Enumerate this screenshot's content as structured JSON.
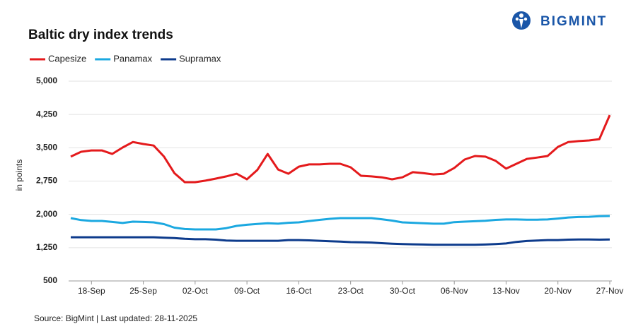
{
  "logo": "BIGMINT",
  "source": "Source: BigMint | Last updated: 28-11-2025",
  "chart_data": {
    "type": "line",
    "title": "Baltic dry index trends",
    "ylabel": "in points",
    "categories": [
      null,
      null,
      "18-Sep",
      null,
      null,
      null,
      null,
      "25-Sep",
      null,
      null,
      null,
      null,
      "02-Oct",
      null,
      null,
      null,
      null,
      "09-Oct",
      null,
      null,
      null,
      null,
      "16-Oct",
      null,
      null,
      null,
      null,
      "23-Oct",
      null,
      null,
      null,
      null,
      "30-Oct",
      null,
      null,
      null,
      null,
      "06-Nov",
      null,
      null,
      null,
      null,
      "13-Nov",
      null,
      null,
      null,
      null,
      "20-Nov",
      null,
      null,
      null,
      null,
      "27-Nov"
    ],
    "series": [
      {
        "name": "Capesize",
        "color": "#e41a1c",
        "values": [
          3300,
          3410,
          3440,
          3440,
          3360,
          3505,
          3630,
          3585,
          3550,
          3300,
          2930,
          2725,
          2725,
          2760,
          2805,
          2855,
          2915,
          2790,
          3000,
          3360,
          3010,
          2915,
          3075,
          3125,
          3125,
          3140,
          3140,
          3060,
          2870,
          2855,
          2835,
          2790,
          2835,
          2950,
          2930,
          2900,
          2915,
          3045,
          3235,
          3315,
          3300,
          3205,
          3030,
          3140,
          3250,
          3280,
          3315,
          3520,
          3630,
          3650,
          3665,
          3695,
          4235
        ]
      },
      {
        "name": "Panamax",
        "color": "#1ba8e0",
        "values": [
          1915,
          1870,
          1851,
          1851,
          1830,
          1805,
          1835,
          1830,
          1820,
          1780,
          1700,
          1670,
          1660,
          1660,
          1660,
          1690,
          1740,
          1765,
          1785,
          1800,
          1790,
          1810,
          1820,
          1850,
          1875,
          1900,
          1915,
          1915,
          1915,
          1915,
          1890,
          1860,
          1820,
          1810,
          1800,
          1790,
          1790,
          1825,
          1835,
          1845,
          1855,
          1875,
          1885,
          1885,
          1880,
          1880,
          1885,
          1905,
          1930,
          1940,
          1945,
          1960,
          1963
        ]
      },
      {
        "name": "Supramax",
        "color": "#0d3b8c",
        "values": [
          1485,
          1485,
          1485,
          1485,
          1485,
          1485,
          1485,
          1485,
          1485,
          1475,
          1465,
          1450,
          1440,
          1440,
          1430,
          1410,
          1405,
          1405,
          1405,
          1405,
          1405,
          1420,
          1420,
          1415,
          1405,
          1395,
          1385,
          1375,
          1370,
          1365,
          1350,
          1340,
          1330,
          1325,
          1320,
          1315,
          1315,
          1315,
          1315,
          1315,
          1320,
          1330,
          1345,
          1380,
          1400,
          1410,
          1420,
          1420,
          1430,
          1435,
          1435,
          1430,
          1435
        ]
      }
    ],
    "ylim": [
      500,
      5000
    ],
    "yticks": [
      500,
      {
        "value": 1250,
        "label": "1,250"
      },
      {
        "value": 2000,
        "label": "2,000"
      },
      {
        "value": 2750,
        "label": "2,750"
      },
      {
        "value": 3500,
        "label": "3,500"
      },
      {
        "value": 4250,
        "label": "4,250"
      },
      {
        "value": 5000,
        "label": "5,000"
      }
    ],
    "grid": true,
    "legend": "top-left"
  }
}
